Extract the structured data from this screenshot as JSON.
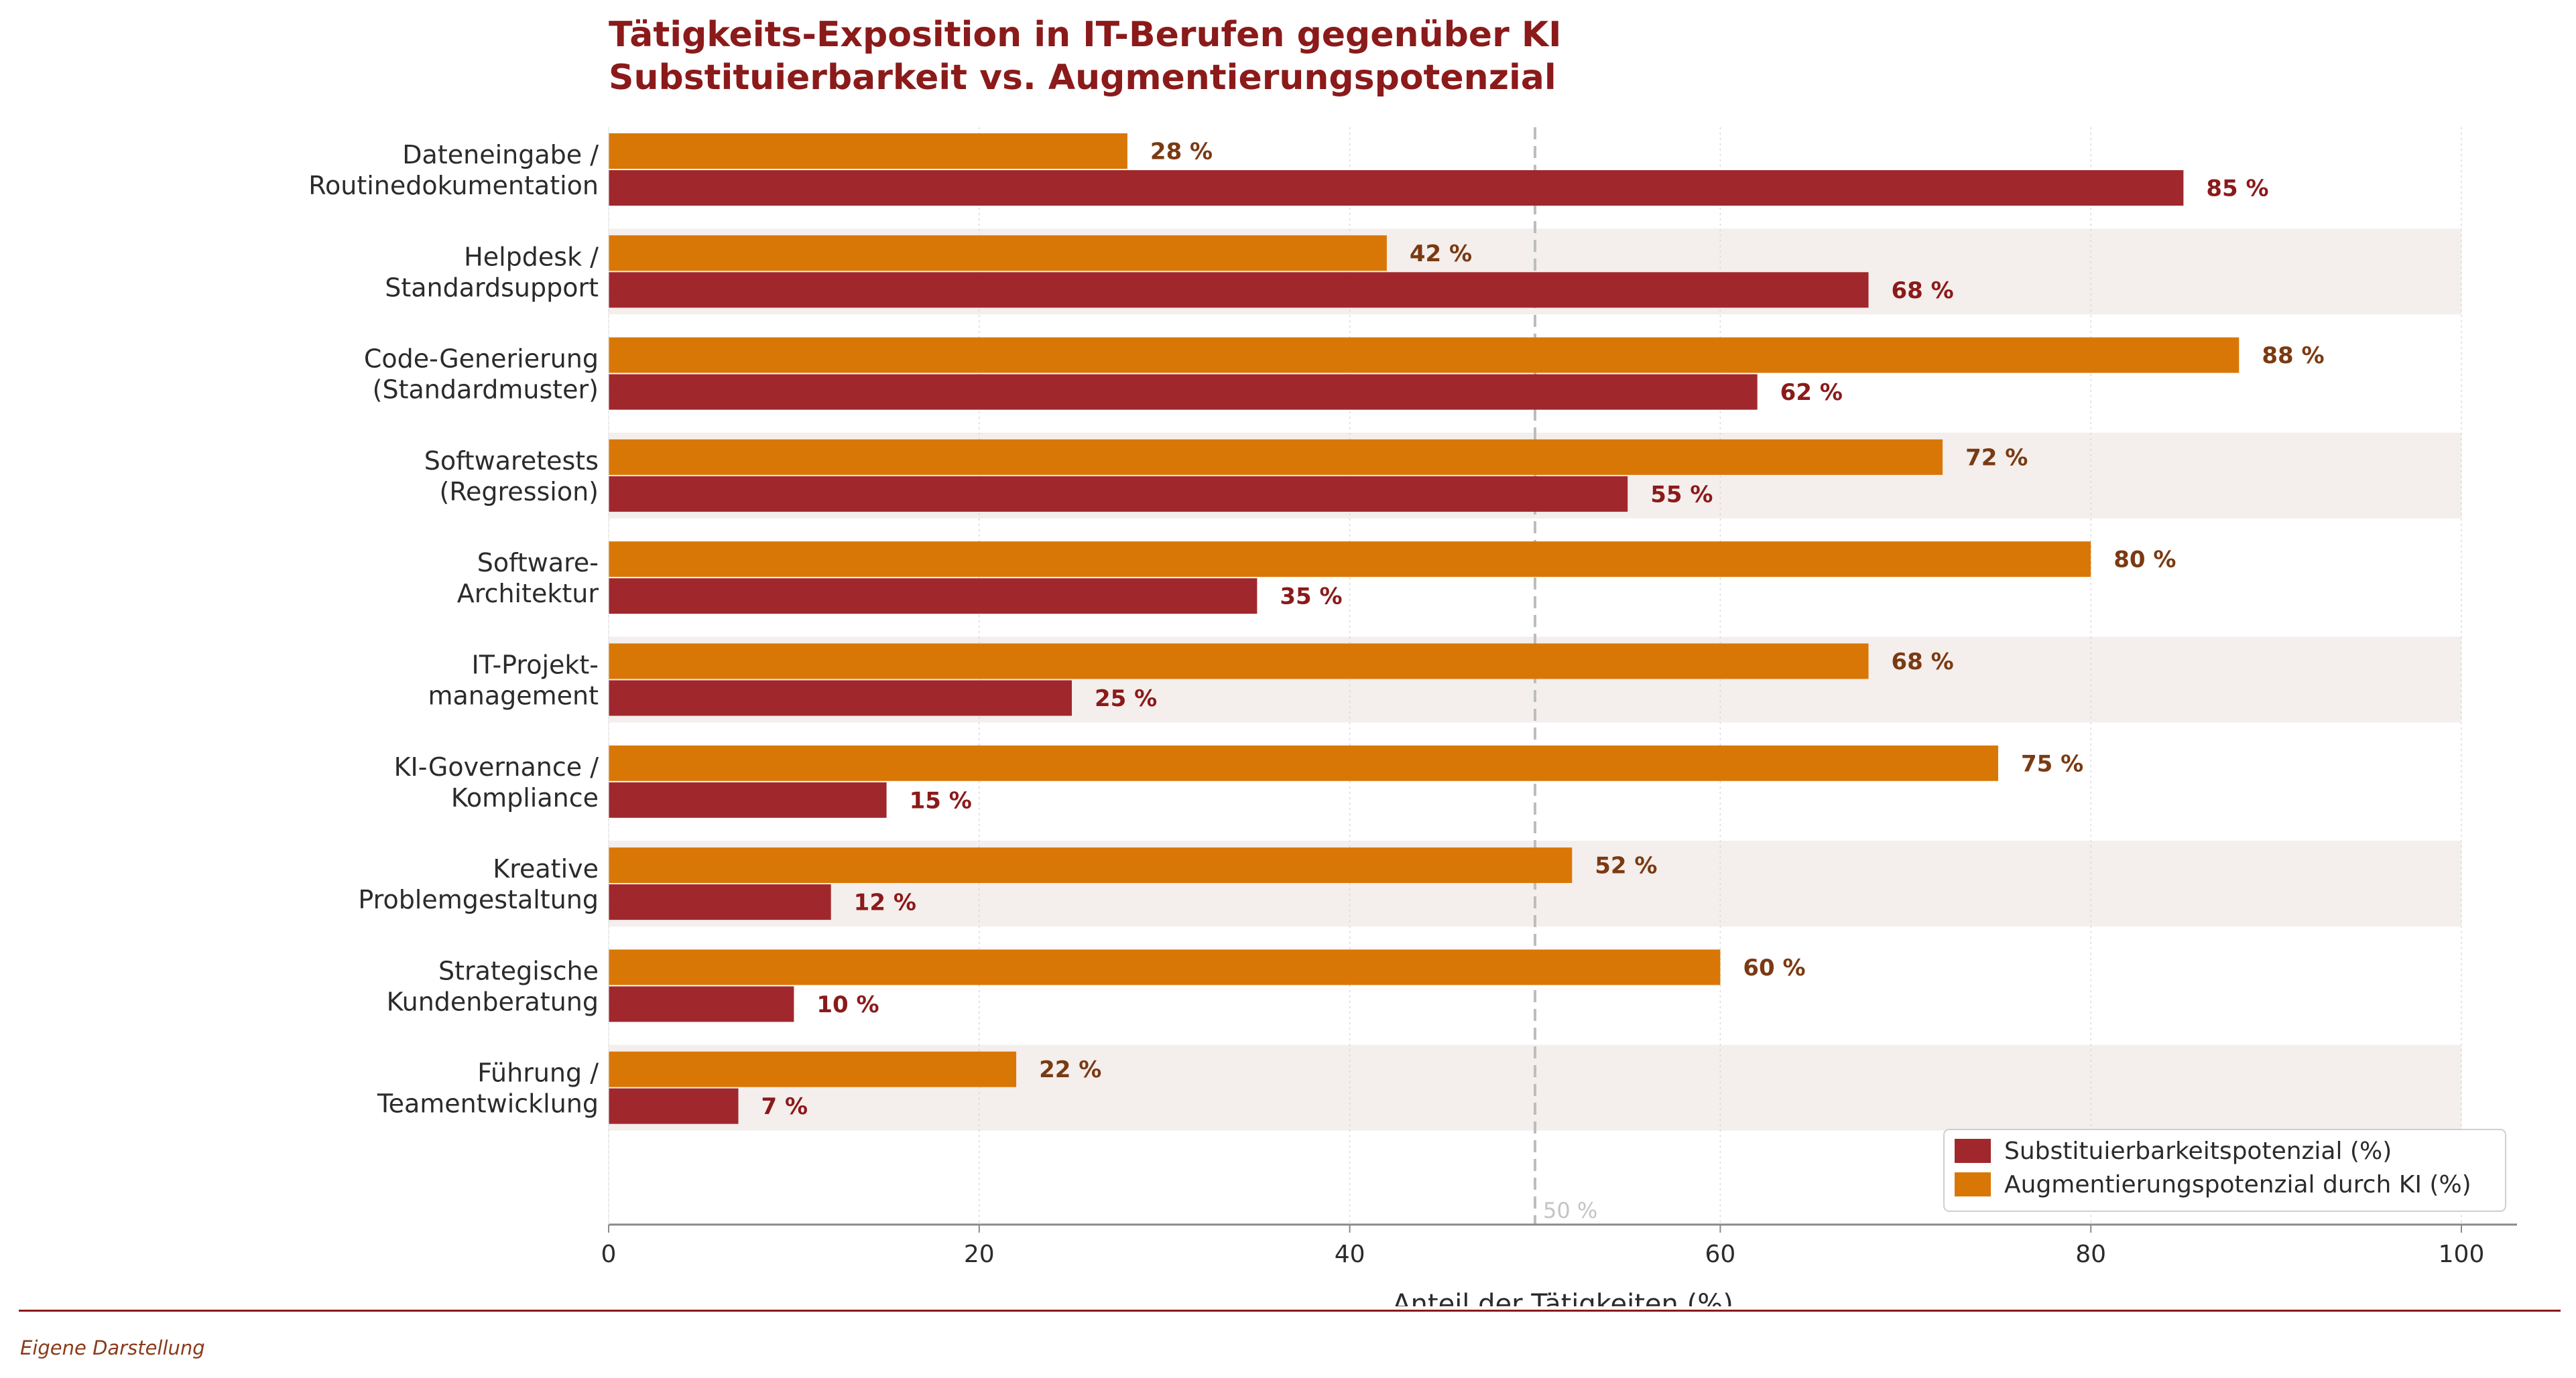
{
  "chart_data": {
    "type": "bar",
    "orientation": "horizontal",
    "title_lines": [
      "Tätigkeits-Exposition in IT-Berufen gegenüber KI",
      "Substituierbarkeit vs. Augmentierungspotenzial"
    ],
    "categories": [
      [
        "Dateneingabe /",
        "Routinedokumentation"
      ],
      [
        "Helpdesk /",
        "Standardsupport"
      ],
      [
        "Code-Generierung",
        "(Standardmuster)"
      ],
      [
        "Softwaretests",
        "(Regression)"
      ],
      [
        "Software-",
        "Architektur"
      ],
      [
        "IT-Projekt-",
        "management"
      ],
      [
        "KI-Governance /",
        "Kompliance"
      ],
      [
        "Kreative",
        "Problemgestaltung"
      ],
      [
        "Strategische",
        "Kundenberatung"
      ],
      [
        "Führung /",
        "Teamentwicklung"
      ]
    ],
    "series": [
      {
        "name": "Substituierbarkeitspotenzial (%)",
        "color": "#a0282d",
        "label_color": "#8b1a1a",
        "values": [
          85,
          68,
          62,
          55,
          35,
          25,
          15,
          12,
          10,
          7
        ]
      },
      {
        "name": "Augmentierungspotenzial durch KI (%)",
        "color": "#d97706",
        "label_color": "#7a3a12",
        "values": [
          28,
          42,
          88,
          72,
          80,
          68,
          75,
          52,
          60,
          22
        ]
      }
    ],
    "value_suffix": " %",
    "xlabel": "Anteil der Tätigkeiten (%)",
    "xlim": [
      0,
      100
    ],
    "xticks": [
      0,
      20,
      40,
      60,
      80,
      100
    ],
    "reference_line": {
      "x": 50,
      "label": "50 %"
    },
    "grid": "vertical-dotted",
    "row_banding": true,
    "legend_position": "bottom-right",
    "source": "Eigene Darstellung"
  }
}
